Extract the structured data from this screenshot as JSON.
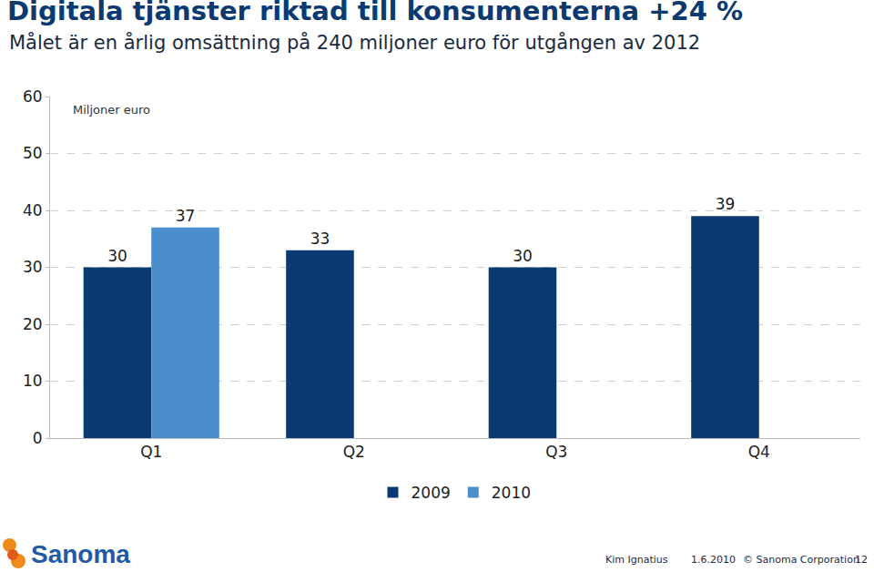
{
  "chart_data": {
    "type": "bar",
    "title": "Digitala tjänster riktad till konsumenterna +24 %",
    "subtitle": "Målet är en årlig omsättning på 240 miljoner euro för utgången av 2012",
    "ylabel": "Miljoner euro",
    "categories": [
      "Q1",
      "Q2",
      "Q3",
      "Q4"
    ],
    "series": [
      {
        "name": "2009",
        "color": "#0b3a70",
        "values": [
          30,
          33,
          30,
          39
        ]
      },
      {
        "name": "2010",
        "color": "#4a8fcc",
        "values": [
          37,
          null,
          null,
          null
        ]
      }
    ],
    "ylim": [
      0,
      60
    ],
    "yticks": [
      0,
      10,
      20,
      30,
      40,
      50,
      60
    ],
    "grid": true,
    "legend": "bottom",
    "data_labels": true
  },
  "footer": {
    "logo": "Sanoma",
    "author": "Kim Ignatius",
    "date": "1.6.2010",
    "copyright": "© Sanoma Corporation",
    "page": "12"
  }
}
